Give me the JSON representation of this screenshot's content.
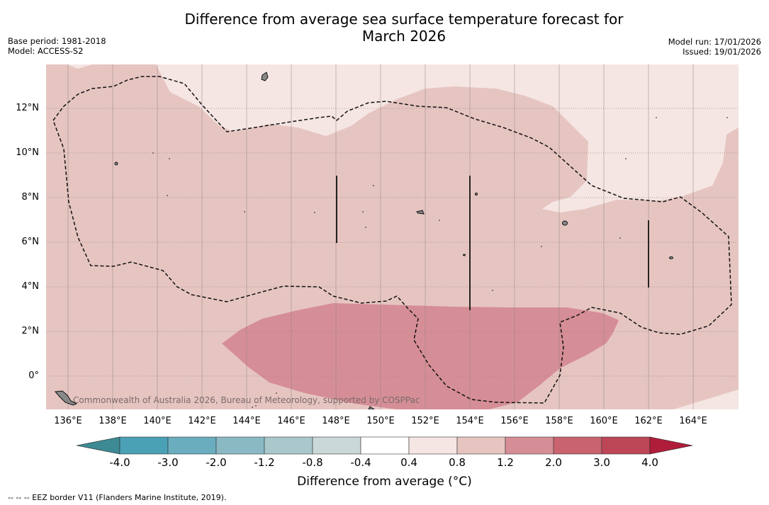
{
  "title": {
    "line1": "Difference from average sea surface temperature forecast for",
    "line2": "March 2026"
  },
  "meta": {
    "base_period": "Base period: 1981-2018",
    "model": "Model: ACCESS-S2",
    "model_run": "Model run: 17/01/2026",
    "issued": "Issued: 19/01/2026"
  },
  "map": {
    "lat_labels": [
      "12°N",
      "10°N",
      "8°N",
      "6°N",
      "4°N",
      "2°N",
      "0°"
    ],
    "lon_labels": [
      "136°E",
      "138°E",
      "140°E",
      "142°E",
      "144°E",
      "146°E",
      "148°E",
      "150°E",
      "152°E",
      "154°E",
      "156°E",
      "158°E",
      "160°E",
      "162°E",
      "164°E"
    ],
    "copyright": "Commonwealth of Australia 2026, Bureau of Meteorology, supported by COSPPac"
  },
  "colorbar": {
    "ticks": [
      "-4.0",
      "-3.0",
      "-2.0",
      "-1.2",
      "-0.8",
      "-0.4",
      "0.4",
      "0.8",
      "1.2",
      "2.0",
      "3.0",
      "4.0"
    ],
    "colors": [
      "#4aa0b4",
      "#6aadbe",
      "#8ab9c4",
      "#aac8cc",
      "#cad8d8",
      "#ffffff",
      "#f5e6e4",
      "#e6c5c1",
      "#d68e96",
      "#c9636f",
      "#bd4657"
    ],
    "under_color": "#3d8a94",
    "over_color": "#b01d3b",
    "label": "Difference from average (°C)"
  },
  "footnote": "--  --  -- EEZ border V11 (Flanders Marine Institute, 2019)."
}
